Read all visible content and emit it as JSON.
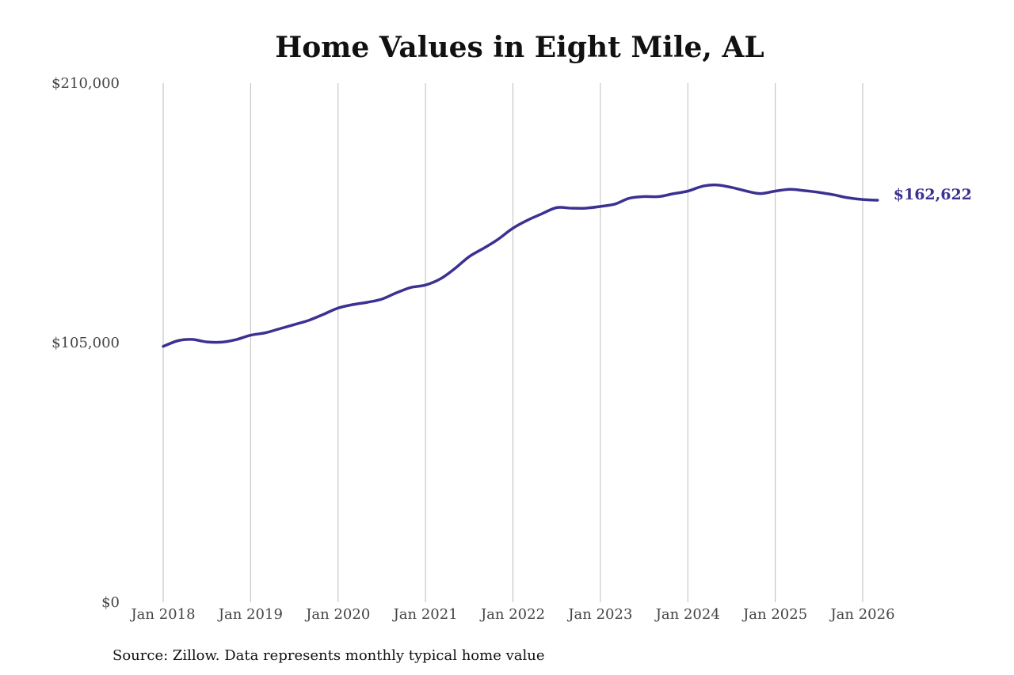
{
  "chart_data": {
    "type": "line",
    "title": "Home Values in Eight Mile, AL",
    "source": "Source: Zillow. Data represents monthly typical home value",
    "ylim": [
      0,
      210000
    ],
    "y_ticks": [
      {
        "value": 0,
        "label": "$0"
      },
      {
        "value": 105000,
        "label": "$105,000"
      },
      {
        "value": 210000,
        "label": "$210,000"
      }
    ],
    "x_ticks": [
      {
        "value": 2018.0,
        "label": "Jan 2018"
      },
      {
        "value": 2019.0,
        "label": "Jan 2019"
      },
      {
        "value": 2020.0,
        "label": "Jan 2020"
      },
      {
        "value": 2021.0,
        "label": "Jan 2021"
      },
      {
        "value": 2022.0,
        "label": "Jan 2022"
      },
      {
        "value": 2023.0,
        "label": "Jan 2023"
      },
      {
        "value": 2024.0,
        "label": "Jan 2024"
      },
      {
        "value": 2025.0,
        "label": "Jan 2025"
      },
      {
        "value": 2026.0,
        "label": "Jan 2026"
      }
    ],
    "xlim": [
      2018.0,
      2026.17
    ],
    "grid": "vertical",
    "series": [
      {
        "color": "#3b3192",
        "end_label": "$162,622",
        "points": [
          [
            2018.0,
            103500
          ],
          [
            2018.17,
            105800
          ],
          [
            2018.33,
            106300
          ],
          [
            2018.5,
            105300
          ],
          [
            2018.67,
            105200
          ],
          [
            2018.83,
            106200
          ],
          [
            2019.0,
            108000
          ],
          [
            2019.17,
            109000
          ],
          [
            2019.33,
            110600
          ],
          [
            2019.5,
            112300
          ],
          [
            2019.67,
            114100
          ],
          [
            2019.83,
            116400
          ],
          [
            2020.0,
            119000
          ],
          [
            2020.17,
            120400
          ],
          [
            2020.33,
            121300
          ],
          [
            2020.5,
            122600
          ],
          [
            2020.67,
            125200
          ],
          [
            2020.83,
            127300
          ],
          [
            2021.0,
            128300
          ],
          [
            2021.17,
            130800
          ],
          [
            2021.33,
            134800
          ],
          [
            2021.5,
            139800
          ],
          [
            2021.67,
            143300
          ],
          [
            2021.83,
            146800
          ],
          [
            2022.0,
            151300
          ],
          [
            2022.17,
            154600
          ],
          [
            2022.33,
            157100
          ],
          [
            2022.5,
            159600
          ],
          [
            2022.67,
            159400
          ],
          [
            2022.83,
            159400
          ],
          [
            2023.0,
            160100
          ],
          [
            2023.17,
            161100
          ],
          [
            2023.33,
            163400
          ],
          [
            2023.5,
            164100
          ],
          [
            2023.67,
            164100
          ],
          [
            2023.83,
            165200
          ],
          [
            2024.0,
            166300
          ],
          [
            2024.17,
            168300
          ],
          [
            2024.33,
            168800
          ],
          [
            2024.5,
            167800
          ],
          [
            2024.67,
            166300
          ],
          [
            2024.83,
            165300
          ],
          [
            2025.0,
            166300
          ],
          [
            2025.17,
            167000
          ],
          [
            2025.33,
            166500
          ],
          [
            2025.5,
            165800
          ],
          [
            2025.67,
            164800
          ],
          [
            2025.83,
            163600
          ],
          [
            2026.0,
            162900
          ],
          [
            2026.17,
            162622
          ]
        ]
      }
    ]
  }
}
